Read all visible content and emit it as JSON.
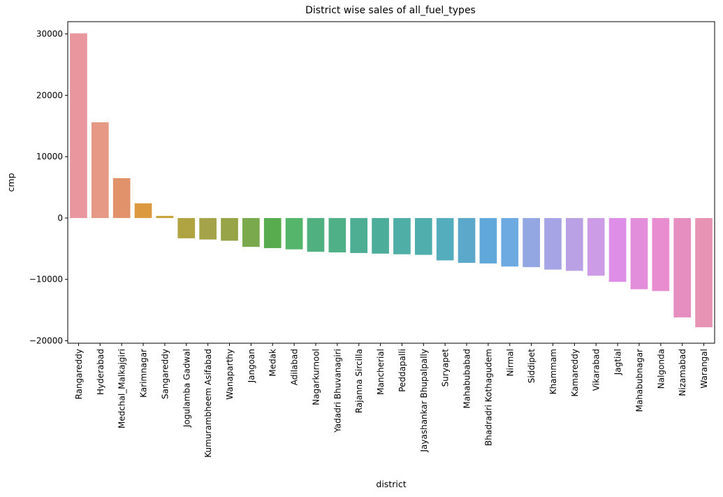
{
  "chart_data": {
    "type": "bar",
    "title": "District wise sales of all_fuel_types",
    "xlabel": "district",
    "ylabel": "cmp",
    "ylim": [
      -20400,
      32000
    ],
    "yticks": [
      -20000,
      -10000,
      0,
      10000,
      20000,
      30000
    ],
    "ytick_labels": [
      "−20000",
      "−10000",
      "0",
      "10000",
      "20000",
      "30000"
    ],
    "grid": false,
    "categories": [
      "Rangareddy",
      "Hyderabad",
      "Medchal_Malkajgiri",
      "Karimnagar",
      "Sangareddy",
      "Jogulamba Gadwal",
      "Kumurambheem Asifabad",
      "Wanaparthy",
      "Jangoan",
      "Medak",
      "Adilabad",
      "Nagarkurnool",
      "Yadadri Bhuvanagiri",
      "Rajanna Sircilla",
      "Mancherial",
      "Peddapalli",
      "Jayashankar Bhupalpally",
      "Suryapet",
      "Mahabubabad",
      "Bhadradri Kothagudem",
      "Nirmal",
      "Siddipet",
      "Khammam",
      "Kamareddy",
      "Vikarabad",
      "Jagtial",
      "Mahabubnagar",
      "Nalgonda",
      "Nizamabad",
      "Warangal"
    ],
    "values": [
      30100,
      15600,
      6500,
      2400,
      350,
      -3300,
      -3500,
      -3700,
      -4700,
      -4900,
      -5100,
      -5500,
      -5600,
      -5700,
      -5800,
      -5900,
      -6000,
      -6900,
      -7300,
      -7400,
      -7900,
      -8000,
      -8400,
      -8600,
      -9400,
      -10400,
      -11600,
      -11900,
      -16200,
      -17800
    ],
    "colors": [
      "#E9969F",
      "#E69A85",
      "#E2926B",
      "#DC9940",
      "#C6A138",
      "#B0A341",
      "#A5A349",
      "#97A448",
      "#79A84D",
      "#58AC4E",
      "#54B56B",
      "#51B07F",
      "#4FAF87",
      "#4EAE93",
      "#4DAD9B",
      "#4FAEA5",
      "#50AFAD",
      "#53ADBD",
      "#5BA8CB",
      "#60A8D9",
      "#6DAAE1",
      "#93A7E3",
      "#A6A4E5",
      "#BAA1E6",
      "#CC9CE6",
      "#DF8EE8",
      "#E38EDB",
      "#E88ED0",
      "#E78EC1",
      "#E793B4"
    ]
  }
}
